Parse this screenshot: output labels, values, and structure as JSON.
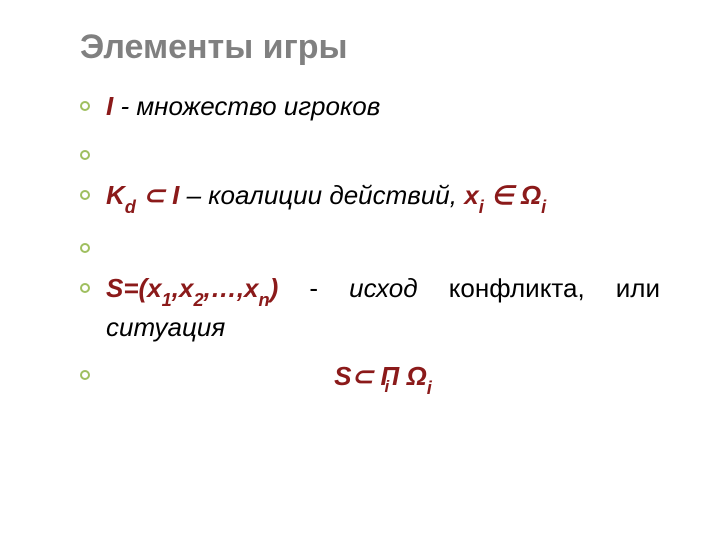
{
  "colors": {
    "title_color": "#808080",
    "term_color": "#8b1a1a",
    "bullet_border": "#9fbf5f",
    "text_color": "#000000",
    "background": "#ffffff"
  },
  "typography": {
    "title_fontsize": 34,
    "body_fontsize": 26,
    "font_family": "Verdana",
    "title_weight": "bold",
    "body_style": "italic"
  },
  "title": "Элементы игры",
  "items": {
    "l1": {
      "term": "I",
      "text": " - множество игроков"
    },
    "l2": {
      "text": ""
    },
    "l3": {
      "term_a": "K",
      "term_a_sub": "d",
      "term_a_rest": " ⊂ I",
      "text": " – коалиции действий,   ",
      "term_b": "x",
      "term_b_sub": "i",
      "term_b_rest": " ∈ Ω",
      "term_b_sub2": "i"
    },
    "l4": {
      "text": ""
    },
    "l5": {
      "term": "S=(x",
      "sub1": "1",
      "mid1": ",x",
      "sub2": "2",
      "mid2": ",…,x",
      "sub3": "n",
      "term_end": ")",
      "text_a": " - ",
      "em_a": "исход",
      "text_b": " конфликта, или ",
      "em_b": "ситуация"
    },
    "l6": {
      "term": "S⊂ П Ω",
      "sub": "i",
      "under": "i"
    }
  }
}
